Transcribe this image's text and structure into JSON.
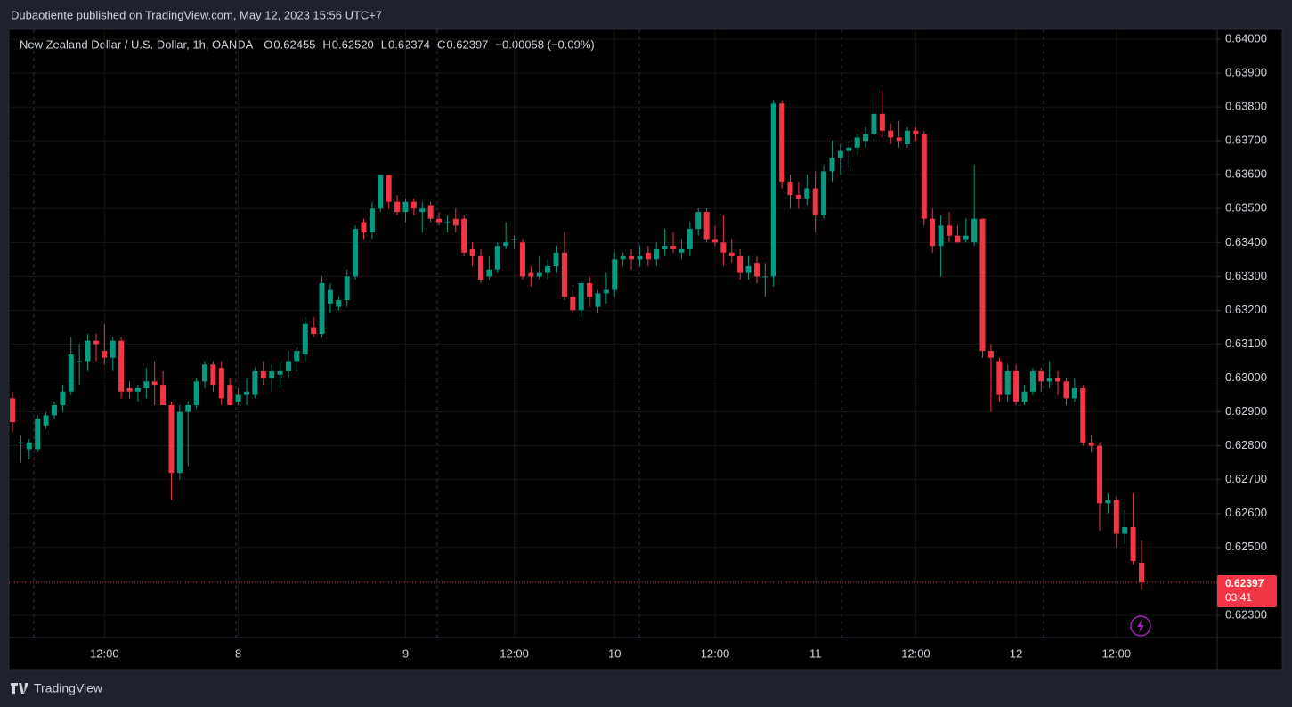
{
  "header": {
    "publisher": "Dubaotiente published on TradingView.com, May 12, 2023 15:56 UTC+7",
    "brand": "TradingView"
  },
  "chart_data": {
    "type": "candlestick",
    "legend": {
      "symbol": "New Zealand Dollar / U.S. Dollar, 1h, OANDA",
      "open_label": "O",
      "open": "0.62455",
      "high_label": "H",
      "high": "0.62520",
      "low_label": "L",
      "low": "0.62374",
      "close_label": "C",
      "close": "0.62397",
      "change": "−0.00058 (−0.09%)"
    },
    "up_color": "#089981",
    "down_color": "#f23645",
    "categories": [
      null,
      null,
      null,
      null,
      null,
      null,
      null,
      null,
      null,
      null,
      null,
      "12:00",
      null,
      null,
      null,
      null,
      null,
      null,
      null,
      null,
      null,
      null,
      null,
      null,
      null,
      null,
      null,
      "8",
      null,
      null,
      null,
      null,
      null,
      null,
      null,
      null,
      null,
      null,
      null,
      null,
      null,
      null,
      null,
      null,
      null,
      null,
      null,
      "9",
      null,
      null,
      null,
      null,
      null,
      null,
      null,
      null,
      null,
      null,
      null,
      null,
      "12:00",
      null,
      null,
      null,
      null,
      null,
      null,
      null,
      null,
      null,
      null,
      null,
      "10",
      null,
      null,
      null,
      null,
      null,
      null,
      null,
      null,
      null,
      null,
      null,
      "12:00",
      null,
      null,
      null,
      null,
      null,
      null,
      null,
      null,
      null,
      null,
      null,
      "11",
      null,
      null,
      null,
      null,
      null,
      null,
      null,
      null,
      null,
      null,
      null,
      "12:00",
      null,
      null,
      null,
      null,
      null,
      null,
      null,
      null,
      null,
      null,
      null,
      "12",
      null,
      null,
      null,
      null,
      null,
      null,
      null,
      null,
      null,
      null,
      null,
      "12:00",
      null,
      null,
      null
    ],
    "open": [
      0.6294,
      0.6281,
      0.6279,
      0.6279,
      0.6286,
      0.6289,
      0.6292,
      0.6296,
      0.6305,
      0.6305,
      0.6311,
      0.6308,
      0.6306,
      0.6311,
      0.6297,
      0.6296,
      0.6297,
      0.6299,
      0.6298,
      0.6292,
      0.6272,
      0.629,
      0.6292,
      0.6299,
      0.6304,
      0.6303,
      0.6298,
      0.6293,
      0.6295,
      0.6295,
      0.6302,
      0.63,
      0.6301,
      0.6302,
      0.6305,
      0.6307,
      0.6315,
      0.6313,
      0.6322,
      0.6321,
      0.6323,
      0.633,
      0.6346,
      0.6343,
      0.635,
      0.636,
      0.6352,
      0.6349,
      0.6352,
      0.6349,
      0.6351,
      0.6347,
      0.6346,
      0.6347,
      0.6347,
      0.6338,
      0.6336,
      0.633,
      0.6332,
      0.6339,
      0.6341,
      0.634,
      0.6331,
      0.633,
      0.6331,
      0.6333,
      0.6337,
      0.6324,
      0.632,
      0.6328,
      0.6321,
      0.6325,
      0.6326,
      0.6335,
      0.6336,
      0.6335,
      0.6337,
      0.6335,
      0.6338,
      0.6339,
      0.6337,
      0.6338,
      0.6344,
      0.6349,
      0.6341,
      0.634,
      0.6337,
      0.6336,
      0.6331,
      0.6334,
      0.633,
      0.633,
      0.6381,
      0.6358,
      0.6354,
      0.6353,
      0.6356,
      0.6348,
      0.6361,
      0.6365,
      0.6367,
      0.6368,
      0.637,
      0.6372,
      0.6378,
      0.6373,
      0.6371,
      0.6369,
      0.6373,
      0.6372,
      0.6347,
      0.6339,
      0.6345,
      0.6342,
      0.6341,
      0.634,
      0.6347,
      0.6308,
      0.6305,
      0.6295,
      0.6302,
      0.6293,
      0.6296,
      0.6302,
      0.6299,
      0.63,
      0.6299,
      0.6294,
      0.6297,
      0.6281,
      0.628,
      0.6263,
      0.6264,
      0.6254,
      0.6256,
      0.62455
    ],
    "high": [
      0.6296,
      0.6283,
      0.6282,
      0.6289,
      0.629,
      0.6293,
      0.6298,
      0.6312,
      0.631,
      0.6313,
      0.6313,
      0.6316,
      0.6312,
      0.6312,
      0.6299,
      0.6298,
      0.6303,
      0.6305,
      0.6302,
      0.6293,
      0.6292,
      0.6293,
      0.63,
      0.6305,
      0.6305,
      0.6305,
      0.63,
      0.6297,
      0.63,
      0.6303,
      0.6305,
      0.6304,
      0.6305,
      0.6308,
      0.6309,
      0.6318,
      0.6318,
      0.633,
      0.6328,
      0.6324,
      0.6332,
      0.6345,
      0.6347,
      0.6352,
      0.636,
      0.636,
      0.6354,
      0.6353,
      0.6353,
      0.6352,
      0.6352,
      0.6349,
      0.6348,
      0.635,
      0.6348,
      0.634,
      0.6338,
      0.6336,
      0.634,
      0.6346,
      0.6342,
      0.6341,
      0.6333,
      0.6336,
      0.6335,
      0.6339,
      0.6343,
      0.6326,
      0.6329,
      0.633,
      0.6326,
      0.6331,
      0.6337,
      0.6337,
      0.6338,
      0.6339,
      0.6339,
      0.634,
      0.6344,
      0.6343,
      0.6341,
      0.6346,
      0.635,
      0.635,
      0.6345,
      0.6348,
      0.6341,
      0.6338,
      0.6336,
      0.6336,
      0.6334,
      0.6382,
      0.6382,
      0.636,
      0.6358,
      0.636,
      0.6361,
      0.6363,
      0.637,
      0.6369,
      0.637,
      0.6372,
      0.6374,
      0.6382,
      0.6385,
      0.6375,
      0.6376,
      0.6374,
      0.6374,
      0.6373,
      0.635,
      0.6348,
      0.6349,
      0.6345,
      0.6347,
      0.6363,
      0.6347,
      0.631,
      0.6306,
      0.6304,
      0.6304,
      0.6298,
      0.6303,
      0.6303,
      0.6305,
      0.6302,
      0.63,
      0.63,
      0.6298,
      0.6283,
      0.6281,
      0.6266,
      0.6265,
      0.6261,
      0.6266,
      0.6252
    ],
    "low": [
      0.6284,
      0.6275,
      0.6276,
      0.6278,
      0.6285,
      0.6288,
      0.629,
      0.6295,
      0.6298,
      0.6302,
      0.6305,
      0.6304,
      0.6302,
      0.6294,
      0.6294,
      0.6293,
      0.6294,
      0.6292,
      0.6292,
      0.6264,
      0.627,
      0.6274,
      0.6291,
      0.6297,
      0.6296,
      0.6292,
      0.6292,
      0.6292,
      0.6292,
      0.6294,
      0.6298,
      0.6296,
      0.6297,
      0.63,
      0.6302,
      0.6305,
      0.6312,
      0.6312,
      0.6319,
      0.632,
      0.6321,
      0.6329,
      0.6341,
      0.6341,
      0.6349,
      0.635,
      0.6348,
      0.6346,
      0.6348,
      0.6343,
      0.6346,
      0.6345,
      0.6343,
      0.6343,
      0.6336,
      0.6333,
      0.6328,
      0.6329,
      0.6331,
      0.6338,
      0.6338,
      0.6329,
      0.6327,
      0.6329,
      0.6329,
      0.6331,
      0.6323,
      0.6319,
      0.6318,
      0.6321,
      0.6319,
      0.6322,
      0.6324,
      0.6333,
      0.6332,
      0.6333,
      0.6333,
      0.6333,
      0.6336,
      0.6337,
      0.6335,
      0.6336,
      0.6342,
      0.634,
      0.6339,
      0.6333,
      0.6334,
      0.6329,
      0.6329,
      0.6328,
      0.6324,
      0.6327,
      0.6356,
      0.635,
      0.635,
      0.6351,
      0.6343,
      0.6347,
      0.6358,
      0.636,
      0.6362,
      0.6366,
      0.6368,
      0.637,
      0.6371,
      0.6369,
      0.6368,
      0.6368,
      0.637,
      0.6345,
      0.6337,
      0.633,
      0.634,
      0.634,
      0.634,
      0.6339,
      0.6306,
      0.629,
      0.6293,
      0.6293,
      0.6292,
      0.6292,
      0.6295,
      0.6296,
      0.6297,
      0.6295,
      0.6292,
      0.6293,
      0.628,
      0.6278,
      0.6255,
      0.626,
      0.625,
      0.6251,
      0.6245,
      0.62374
    ],
    "close": [
      0.6287,
      0.6281,
      0.6281,
      0.6288,
      0.6289,
      0.6292,
      0.6296,
      0.6307,
      0.6305,
      0.6311,
      0.631,
      0.6306,
      0.6311,
      0.6296,
      0.6296,
      0.6297,
      0.6299,
      0.6298,
      0.6292,
      0.6272,
      0.629,
      0.6292,
      0.6299,
      0.6304,
      0.6298,
      0.6294,
      0.6292,
      0.6295,
      0.6296,
      0.6302,
      0.63,
      0.6302,
      0.6302,
      0.6305,
      0.6308,
      0.6316,
      0.6313,
      0.6328,
      0.6326,
      0.6323,
      0.633,
      0.6344,
      0.6343,
      0.635,
      0.636,
      0.6352,
      0.6349,
      0.6352,
      0.635,
      0.635,
      0.6347,
      0.6346,
      0.6346,
      0.6345,
      0.6337,
      0.6336,
      0.6329,
      0.6332,
      0.6339,
      0.634,
      0.6341,
      0.633,
      0.633,
      0.6331,
      0.6333,
      0.6337,
      0.6324,
      0.632,
      0.6328,
      0.6324,
      0.6325,
      0.6326,
      0.6335,
      0.6336,
      0.6335,
      0.6336,
      0.6335,
      0.6338,
      0.6339,
      0.6338,
      0.6338,
      0.6344,
      0.6349,
      0.6341,
      0.634,
      0.6337,
      0.6336,
      0.6331,
      0.6333,
      0.633,
      0.633,
      0.6381,
      0.6358,
      0.6354,
      0.6353,
      0.6356,
      0.6348,
      0.6361,
      0.6365,
      0.6367,
      0.6368,
      0.6371,
      0.6372,
      0.6378,
      0.6373,
      0.6371,
      0.637,
      0.6373,
      0.6372,
      0.6347,
      0.6339,
      0.6345,
      0.6342,
      0.634,
      0.6342,
      0.6347,
      0.6308,
      0.6306,
      0.6295,
      0.6302,
      0.6293,
      0.6296,
      0.6302,
      0.6299,
      0.63,
      0.6299,
      0.6294,
      0.6297,
      0.6281,
      0.628,
      0.6263,
      0.6264,
      0.6254,
      0.6256,
      0.6246,
      0.62397
    ],
    "countdown": "03:41",
    "ylim": [
      0.62234,
      0.64029
    ],
    "yticks": [
      {
        "value": 0.623,
        "label": "0.62300"
      },
      {
        "value": 0.624,
        "label": "0.62400"
      },
      {
        "value": 0.625,
        "label": "0.62500"
      },
      {
        "value": 0.626,
        "label": "0.62600"
      },
      {
        "value": 0.627,
        "label": "0.62700"
      },
      {
        "value": 0.628,
        "label": "0.62800"
      },
      {
        "value": 0.629,
        "label": "0.62900"
      },
      {
        "value": 0.63,
        "label": "0.63000"
      },
      {
        "value": 0.631,
        "label": "0.63100"
      },
      {
        "value": 0.632,
        "label": "0.63200"
      },
      {
        "value": 0.633,
        "label": "0.63300"
      },
      {
        "value": 0.634,
        "label": "0.63400"
      },
      {
        "value": 0.635,
        "label": "0.63500"
      },
      {
        "value": 0.636,
        "label": "0.63600"
      },
      {
        "value": 0.637,
        "label": "0.63700"
      },
      {
        "value": 0.638,
        "label": "0.63800"
      },
      {
        "value": 0.639,
        "label": "0.63900"
      },
      {
        "value": 0.64,
        "label": "0.64000"
      }
    ],
    "grid": true
  }
}
